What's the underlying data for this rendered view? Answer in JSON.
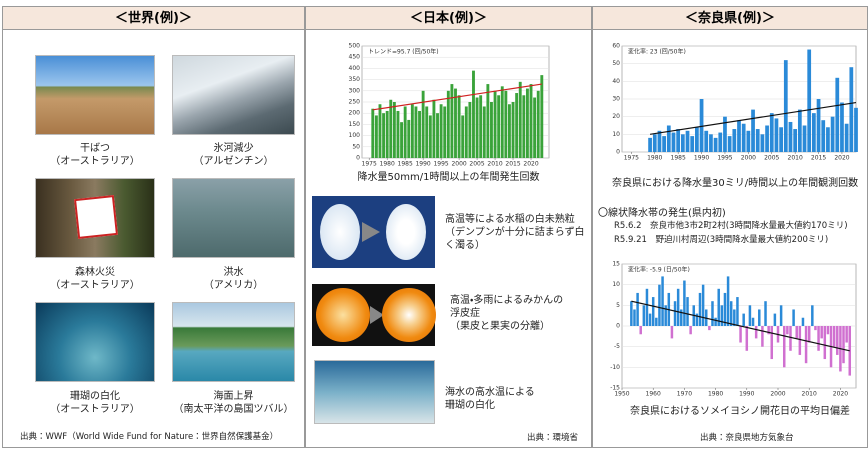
{
  "columns": [
    {
      "header": "＜世界(例)＞",
      "items": [
        {
          "label": "干ばつ",
          "sublabel": "（オーストラリア）"
        },
        {
          "label": "氷河減少",
          "sublabel": "（アルゼンチン）"
        },
        {
          "label": "森林火災",
          "sublabel": "（オーストラリア）"
        },
        {
          "label": "洪水",
          "sublabel": "（アメリカ）"
        },
        {
          "label": "珊瑚の白化",
          "sublabel": "（オーストラリア）"
        },
        {
          "label": "海面上昇",
          "sublabel": "（南太平洋の島国ツバル）"
        }
      ],
      "source": "出典：WWF（World Wide Fund for Nature：世界自然保護基金）"
    },
    {
      "header": "＜日本(例)＞",
      "chart": {
        "type": "bar",
        "annotation": "トレンド=95.7 (回/50年)",
        "color": "#3aa33a",
        "trend_color": "#d02020",
        "x": [
          1976,
          1977,
          1978,
          1979,
          1980,
          1981,
          1982,
          1983,
          1984,
          1985,
          1986,
          1987,
          1988,
          1989,
          1990,
          1991,
          1992,
          1993,
          1994,
          1995,
          1996,
          1997,
          1998,
          1999,
          2000,
          2001,
          2002,
          2003,
          2004,
          2005,
          2006,
          2007,
          2008,
          2009,
          2010,
          2011,
          2012,
          2013,
          2014,
          2015,
          2016,
          2017,
          2018,
          2019,
          2020,
          2021,
          2022,
          2023
        ],
        "values": [
          220,
          190,
          240,
          200,
          210,
          260,
          250,
          210,
          160,
          230,
          170,
          240,
          230,
          210,
          300,
          230,
          190,
          260,
          200,
          240,
          230,
          300,
          330,
          310,
          280,
          190,
          230,
          250,
          390,
          270,
          280,
          230,
          330,
          250,
          300,
          280,
          320,
          300,
          240,
          250,
          290,
          340,
          280,
          310,
          330,
          270,
          300,
          370
        ],
        "trend": {
          "x": [
            1976,
            2023
          ],
          "values": [
            215,
            330
          ]
        },
        "xlim": [
          1973,
          2025
        ],
        "xticks": [
          1975,
          1980,
          1985,
          1990,
          1995,
          2000,
          2005,
          2010,
          2015,
          2020
        ],
        "ylim": [
          0,
          500
        ],
        "yticks": [
          0,
          50,
          100,
          150,
          200,
          250,
          300,
          350,
          400,
          450,
          500
        ]
      },
      "caption": "降水量50mm/1時間以上の年間発生回数",
      "items": [
        {
          "lines": [
            "高温等による水稲の白未熟粒",
            "（デンプンが十分に詰まらず白",
            "く濁る）"
          ]
        },
        {
          "lines": [
            "高温・多雨によるみかんの",
            "浮皮症",
            "（果皮と果実の分離）"
          ]
        },
        {
          "lines": [
            "海水の高水温による",
            "珊瑚の白化"
          ]
        }
      ],
      "source": "出典：環境省"
    },
    {
      "header": "＜奈良県(例)＞",
      "chart": {
        "type": "bar",
        "annotation": "変化率: 23 (回/50年)",
        "color": "#2a8ad8",
        "trend_color": "#111111",
        "x": [
          1979,
          1980,
          1981,
          1982,
          1983,
          1984,
          1985,
          1986,
          1987,
          1988,
          1989,
          1990,
          1991,
          1992,
          1993,
          1994,
          1995,
          1996,
          1997,
          1998,
          1999,
          2000,
          2001,
          2002,
          2003,
          2004,
          2005,
          2006,
          2007,
          2008,
          2009,
          2010,
          2011,
          2012,
          2013,
          2014,
          2015,
          2016,
          2017,
          2018,
          2019,
          2020,
          2021,
          2022,
          2023
        ],
        "values": [
          8,
          10,
          12,
          9,
          15,
          11,
          13,
          10,
          12,
          9,
          14,
          30,
          12,
          10,
          8,
          11,
          20,
          9,
          13,
          18,
          16,
          12,
          24,
          13,
          10,
          15,
          22,
          19,
          14,
          52,
          17,
          13,
          24,
          15,
          58,
          22,
          30,
          18,
          14,
          20,
          42,
          28,
          16,
          48,
          25
        ],
        "trend": {
          "x": [
            1979,
            2023
          ],
          "values": [
            10,
            28
          ]
        },
        "xlim": [
          1973,
          2023
        ],
        "xticks": [
          1975,
          1980,
          1985,
          1990,
          1995,
          2000,
          2005,
          2010,
          2015,
          2020
        ],
        "ylim": [
          0,
          60
        ],
        "yticks": [
          0,
          10,
          20,
          30,
          40,
          50,
          60
        ]
      },
      "caption": "奈良県における降水量30ミリ/時間以上の年間観測回数",
      "note": {
        "title": "〇線状降水帯の発生(県内初)",
        "lines": [
          "R5.6.2　奈良市他3市2町2村(3時間降水量最大値約170ミリ)",
          "R5.9.21　野迫川村周辺(3時間降水量最大値約200ミリ)"
        ]
      },
      "chart2": {
        "type": "bar",
        "annotation": "変化率: -5.9 (日/50年)",
        "color": "#2a8ad8",
        "negative_color": "#d070d0",
        "trend_color": "#111111",
        "x": [
          1953,
          1954,
          1955,
          1956,
          1957,
          1958,
          1959,
          1960,
          1961,
          1962,
          1963,
          1964,
          1965,
          1966,
          1967,
          1968,
          1969,
          1970,
          1971,
          1972,
          1973,
          1974,
          1975,
          1976,
          1977,
          1978,
          1979,
          1980,
          1981,
          1982,
          1983,
          1984,
          1985,
          1986,
          1987,
          1988,
          1989,
          1990,
          1991,
          1992,
          1993,
          1994,
          1995,
          1996,
          1997,
          1998,
          1999,
          2000,
          2001,
          2002,
          2003,
          2004,
          2005,
          2006,
          2007,
          2008,
          2009,
          2010,
          2011,
          2012,
          2013,
          2014,
          2015,
          2016,
          2017,
          2018,
          2019,
          2020,
          2021,
          2022,
          2023
        ],
        "values": [
          6,
          4,
          8,
          -2,
          5,
          9,
          3,
          7,
          2,
          10,
          12,
          5,
          8,
          -3,
          6,
          9,
          4,
          11,
          7,
          -2,
          5,
          3,
          8,
          10,
          4,
          -1,
          6,
          2,
          9,
          5,
          8,
          12,
          6,
          4,
          7,
          -4,
          3,
          -6,
          5,
          2,
          -3,
          4,
          -5,
          6,
          -2,
          -8,
          3,
          -4,
          5,
          -10,
          -2,
          -6,
          4,
          -3,
          -7,
          2,
          -9,
          -4,
          5,
          -1,
          -6,
          -3,
          -8,
          -2,
          -10,
          -5,
          -7,
          -11,
          -9,
          -4,
          -12
        ],
        "trend": {
          "x": [
            1953,
            2023
          ],
          "values": [
            6,
            -6
          ]
        },
        "xlim": [
          1950,
          2025
        ],
        "xticks": [
          1950,
          1960,
          1970,
          1980,
          1990,
          2000,
          2010,
          2020
        ],
        "ylim": [
          -15,
          15
        ],
        "yticks": [
          -15,
          -10,
          -5,
          0,
          5,
          10,
          15
        ]
      },
      "caption2": "奈良県におけるソメイヨシノ開花日の平均日偏差",
      "source": "出典：奈良県地方気象台"
    }
  ]
}
